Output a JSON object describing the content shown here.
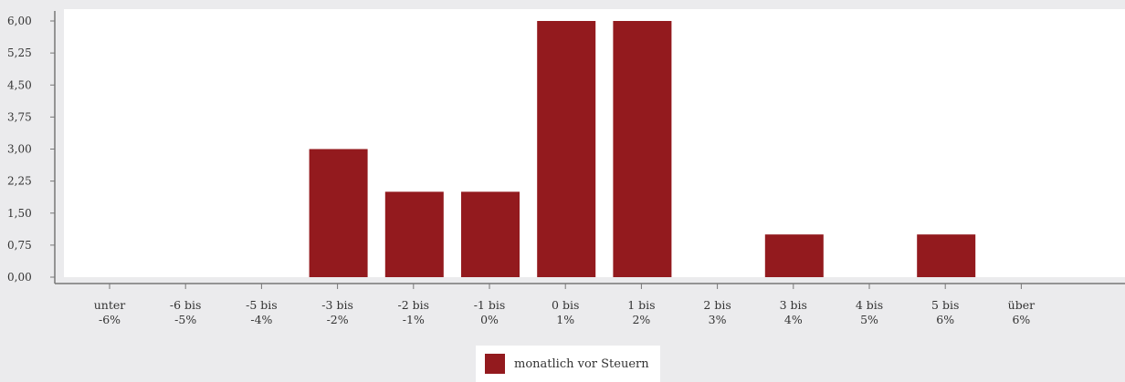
{
  "chart_data": {
    "type": "bar",
    "categories": [
      [
        "unter",
        "-6%"
      ],
      [
        "-6 bis",
        "-5%"
      ],
      [
        "-5 bis",
        "-4%"
      ],
      [
        "-3 bis",
        "-2%"
      ],
      [
        "-2 bis",
        "-1%"
      ],
      [
        "-1 bis",
        "0%"
      ],
      [
        "0 bis",
        "1%"
      ],
      [
        "1 bis",
        "2%"
      ],
      [
        "2 bis",
        "3%"
      ],
      [
        "3 bis",
        "4%"
      ],
      [
        "4 bis",
        "5%"
      ],
      [
        "5 bis",
        "6%"
      ],
      [
        "über",
        "6%"
      ]
    ],
    "series": [
      {
        "name": "monatlich vor Steuern",
        "values": [
          0,
          0,
          0,
          3,
          2,
          2,
          6,
          6,
          0,
          1,
          0,
          1,
          0
        ]
      }
    ],
    "yticks": [
      "0,00",
      "0,75",
      "1,50",
      "2,25",
      "3,00",
      "3,75",
      "4,50",
      "5,25",
      "6,00"
    ],
    "ylim": [
      0,
      6
    ],
    "legend_position": "bottom-center",
    "colors": {
      "bar": "#931a1e",
      "plot_background": "#ffffff",
      "page_background": "#ebebed",
      "axis": "#777777"
    }
  }
}
